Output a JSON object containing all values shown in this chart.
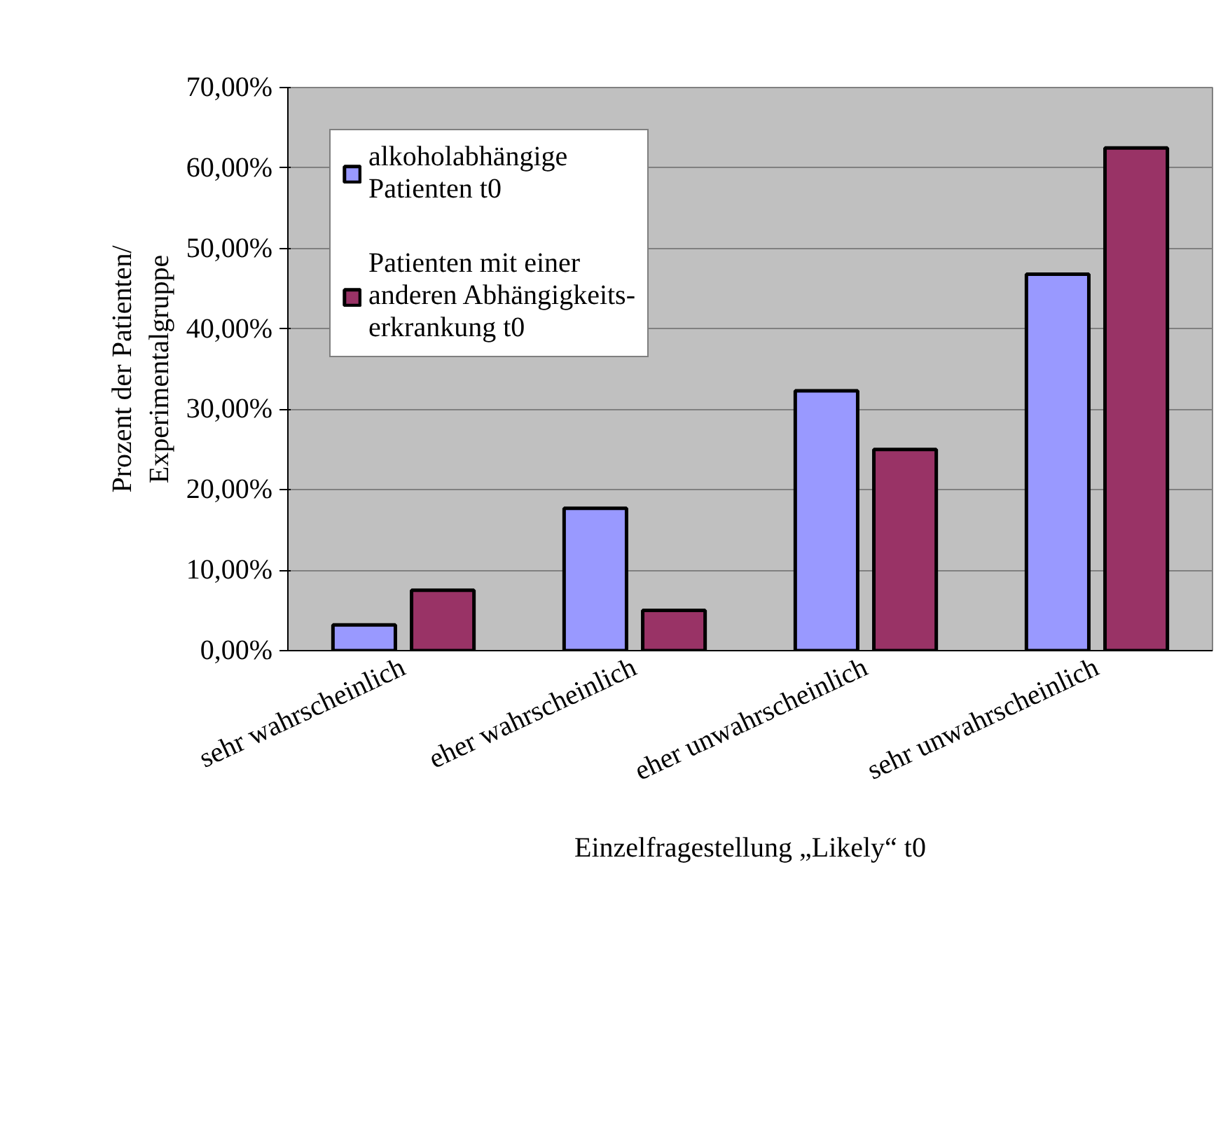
{
  "chart_data": {
    "type": "bar",
    "xlabel": "Einzelfragestellung „Likely“ t0",
    "ylabel": "Prozent der Patienten/\nExperimentalgruppe",
    "categories": [
      "sehr wahrscheinlich",
      "eher wahrscheinlich",
      "eher unwahrscheinlich",
      "sehr unwahrscheinlich"
    ],
    "series": [
      {
        "name": "alkoholabhängige\nPatienten t0",
        "color": "#9999ff",
        "values": [
          3.2,
          17.7,
          32.3,
          46.8
        ]
      },
      {
        "name": "Patienten mit einer\nanderen Abhängigkeits-\nerkrankung t0",
        "color": "#993366",
        "values": [
          7.5,
          5.0,
          25.0,
          62.5
        ]
      }
    ],
    "ylim": [
      0,
      70
    ],
    "yticks": [
      {
        "value": 0,
        "label": "0,00%"
      },
      {
        "value": 10,
        "label": "10,00%"
      },
      {
        "value": 20,
        "label": "20,00%"
      },
      {
        "value": 30,
        "label": "30,00%"
      },
      {
        "value": 40,
        "label": "40,00%"
      },
      {
        "value": 50,
        "label": "50,00%"
      },
      {
        "value": 60,
        "label": "60,00%"
      },
      {
        "value": 70,
        "label": "70,00%"
      }
    ],
    "grid": "y",
    "legend": "top left"
  }
}
